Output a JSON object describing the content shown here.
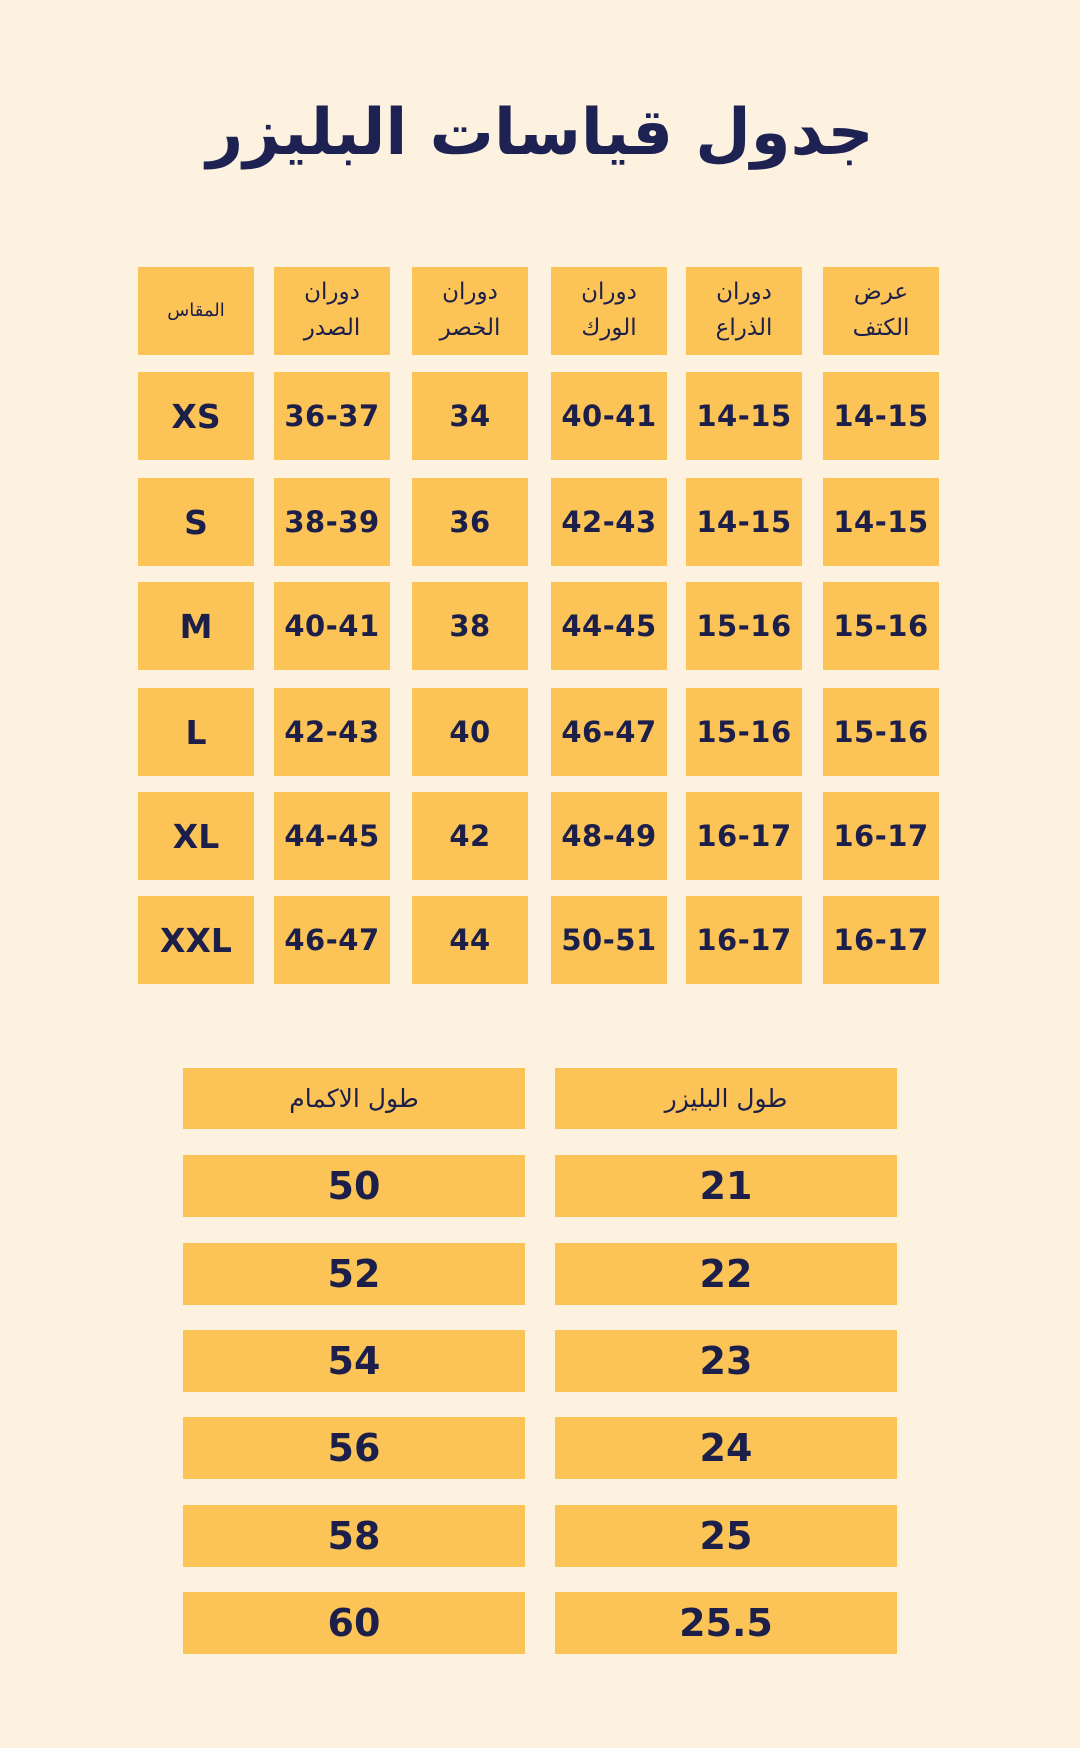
{
  "title": "جدول قياسات البليزر",
  "size_table": {
    "headers": [
      "عرض\nالكتف",
      "دوران\nالذراع",
      "دوران\nالورك",
      "دوران\nالخصر",
      "دوران\nالصدر",
      "المقاس"
    ],
    "rows": [
      [
        "14-15",
        "14-15",
        "40-41",
        "34",
        "36-37",
        "XS"
      ],
      [
        "14-15",
        "14-15",
        "42-43",
        "36",
        "38-39",
        "S"
      ],
      [
        "15-16",
        "15-16",
        "44-45",
        "38",
        "40-41",
        "M"
      ],
      [
        "15-16",
        "15-16",
        "46-47",
        "40",
        "42-43",
        "L"
      ],
      [
        "16-17",
        "16-17",
        "48-49",
        "42",
        "44-45",
        "XL"
      ],
      [
        "16-17",
        "16-17",
        "50-51",
        "44",
        "46-47",
        "XXL"
      ]
    ]
  },
  "length_table": {
    "headers": [
      "طول البليزر",
      "طول الاكمام"
    ],
    "rows": [
      [
        "21",
        "50"
      ],
      [
        "22",
        "52"
      ],
      [
        "23",
        "54"
      ],
      [
        "24",
        "56"
      ],
      [
        "25",
        "58"
      ],
      [
        "25.5",
        "60"
      ]
    ]
  },
  "colors": {
    "background": "#fdf2df",
    "cell": "#fcc457",
    "text": "#1c1f4a"
  }
}
